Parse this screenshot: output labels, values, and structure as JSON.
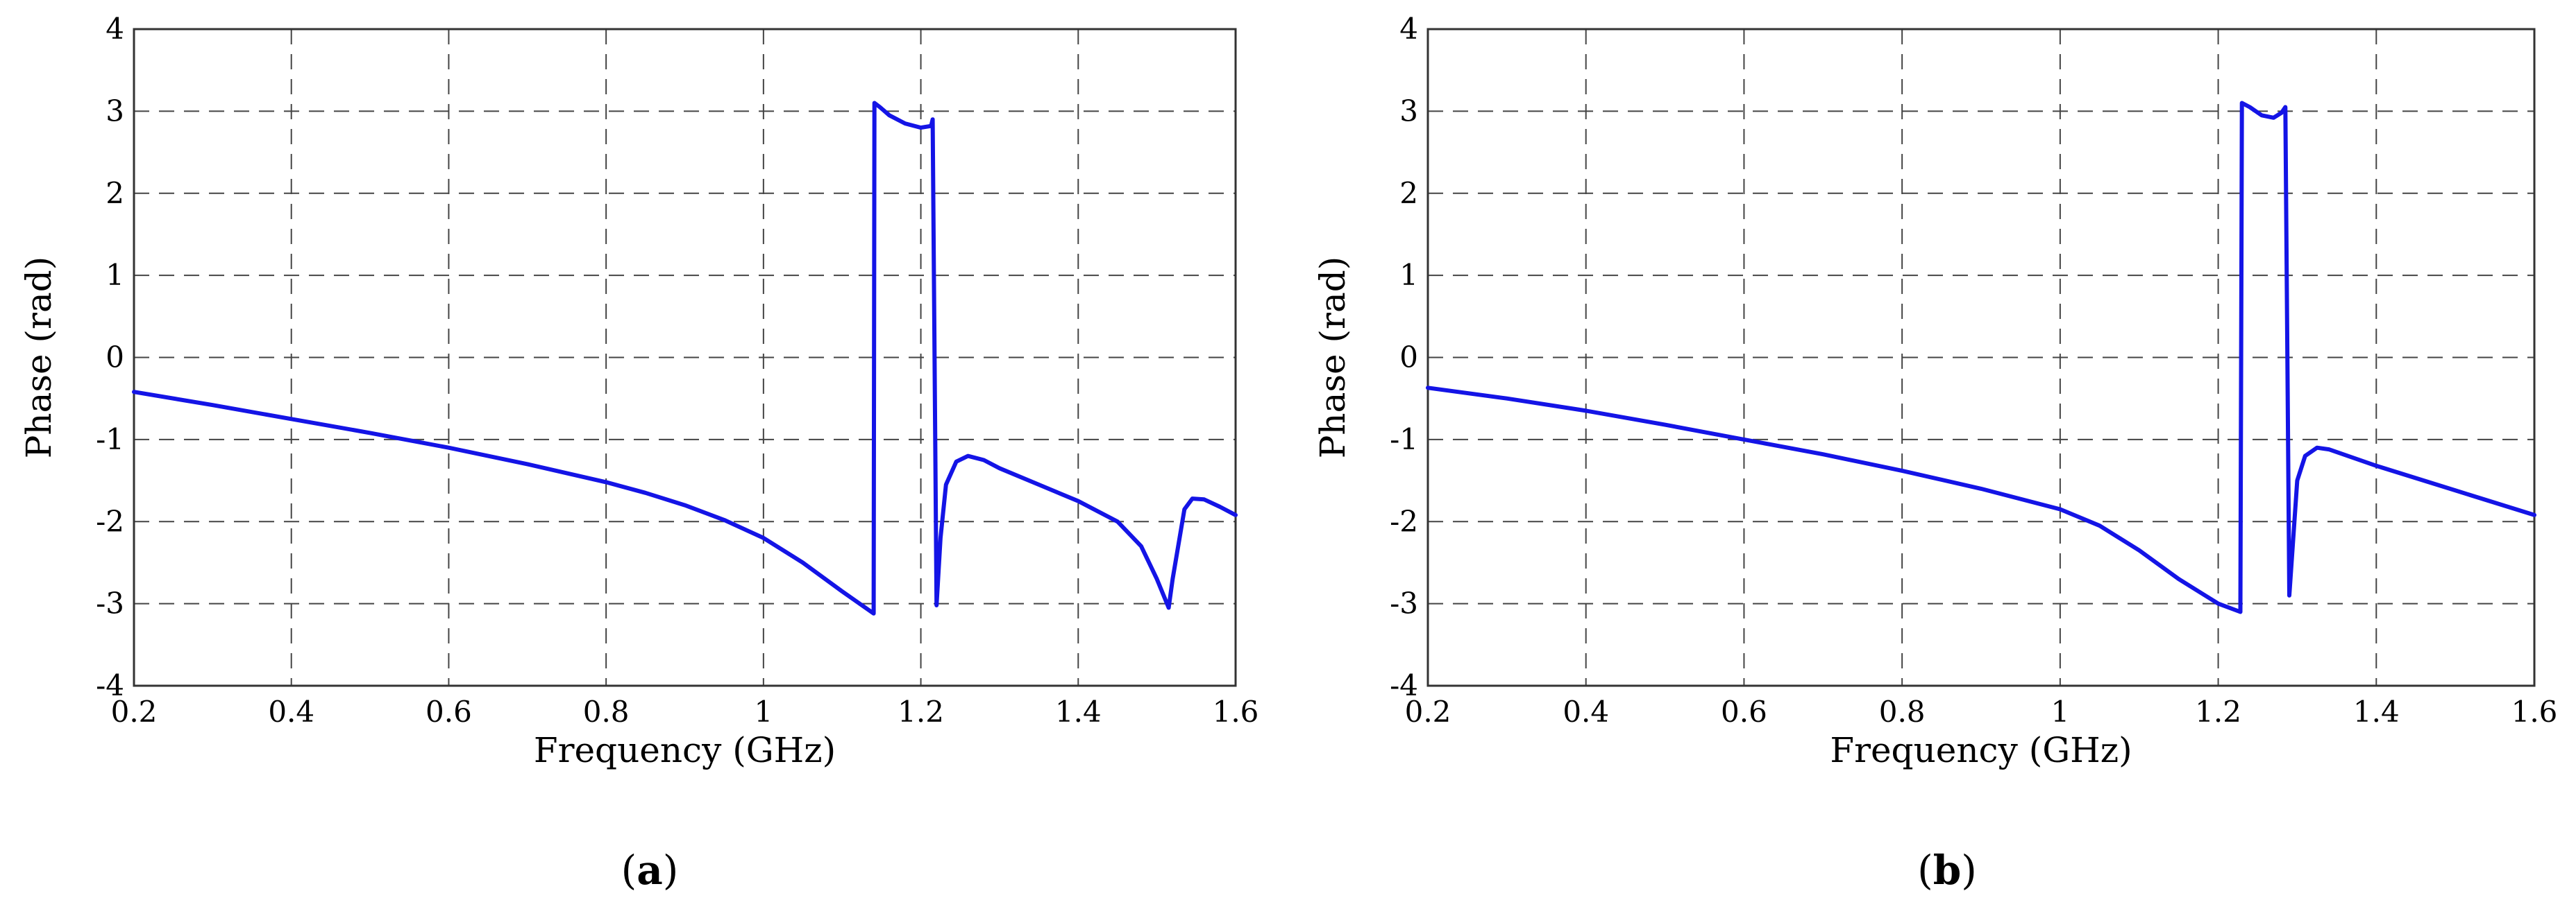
{
  "chart_data": [
    {
      "type": "line",
      "panel_label": {
        "open": "(",
        "letter": "a",
        "close": ")"
      },
      "xlabel": "Frequency (GHz)",
      "ylabel": "Phase (rad)",
      "xlim": [
        0.2,
        1.6
      ],
      "ylim": [
        -4,
        4
      ],
      "xticks": [
        0.2,
        0.4,
        0.6,
        0.8,
        1,
        1.2,
        1.4,
        1.6
      ],
      "xtick_labels": [
        "0.2",
        "0.4",
        "0.6",
        "0.8",
        "1",
        "1.2",
        "1.4",
        "1.6"
      ],
      "yticks": [
        -4,
        -3,
        -2,
        -1,
        0,
        1,
        2,
        3,
        4
      ],
      "ytick_labels": [
        "-4",
        "-3",
        "-2",
        "-1",
        "0",
        "1",
        "2",
        "3",
        "4"
      ],
      "grid": true,
      "series": [
        {
          "color": "#1414e6",
          "x": [
            0.2,
            0.3,
            0.4,
            0.5,
            0.6,
            0.7,
            0.8,
            0.85,
            0.9,
            0.95,
            1.0,
            1.05,
            1.1,
            1.14,
            1.141,
            1.148,
            1.16,
            1.18,
            1.2,
            1.213,
            1.215,
            1.22,
            1.225,
            1.232,
            1.245,
            1.26,
            1.28,
            1.3,
            1.35,
            1.4,
            1.45,
            1.48,
            1.5,
            1.515,
            1.52,
            1.535,
            1.545,
            1.56,
            1.58,
            1.6
          ],
          "y": [
            -0.42,
            -0.58,
            -0.75,
            -0.92,
            -1.1,
            -1.3,
            -1.52,
            -1.65,
            -1.8,
            -1.98,
            -2.2,
            -2.5,
            -2.85,
            -3.12,
            3.1,
            3.05,
            2.95,
            2.85,
            2.8,
            2.82,
            2.9,
            -3.02,
            -2.2,
            -1.55,
            -1.27,
            -1.2,
            -1.25,
            -1.35,
            -1.55,
            -1.75,
            -2.0,
            -2.3,
            -2.7,
            -3.05,
            -2.7,
            -1.85,
            -1.72,
            -1.73,
            -1.82,
            -1.92
          ]
        }
      ]
    },
    {
      "type": "line",
      "panel_label": {
        "open": "(",
        "letter": "b",
        "close": ")"
      },
      "xlabel": "Frequency (GHz)",
      "ylabel": "Phase (rad)",
      "xlim": [
        0.2,
        1.6
      ],
      "ylim": [
        -4,
        4
      ],
      "xticks": [
        0.2,
        0.4,
        0.6,
        0.8,
        1,
        1.2,
        1.4,
        1.6
      ],
      "xtick_labels": [
        "0.2",
        "0.4",
        "0.6",
        "0.8",
        "1",
        "1.2",
        "1.4",
        "1.6"
      ],
      "yticks": [
        -4,
        -3,
        -2,
        -1,
        0,
        1,
        2,
        3,
        4
      ],
      "ytick_labels": [
        "-4",
        "-3",
        "-2",
        "-1",
        "0",
        "1",
        "2",
        "3",
        "4"
      ],
      "grid": true,
      "series": [
        {
          "color": "#1414e6",
          "x": [
            0.2,
            0.3,
            0.4,
            0.5,
            0.6,
            0.7,
            0.8,
            0.9,
            1.0,
            1.05,
            1.1,
            1.15,
            1.2,
            1.228,
            1.23,
            1.24,
            1.255,
            1.27,
            1.28,
            1.285,
            1.29,
            1.3,
            1.31,
            1.325,
            1.34,
            1.4,
            1.5,
            1.6
          ],
          "y": [
            -0.37,
            -0.5,
            -0.65,
            -0.82,
            -1.0,
            -1.18,
            -1.38,
            -1.6,
            -1.85,
            -2.05,
            -2.35,
            -2.7,
            -3.0,
            -3.1,
            3.1,
            3.05,
            2.95,
            2.92,
            2.98,
            3.05,
            -2.9,
            -1.5,
            -1.2,
            -1.1,
            -1.12,
            -1.32,
            -1.62,
            -1.92
          ]
        }
      ]
    }
  ]
}
